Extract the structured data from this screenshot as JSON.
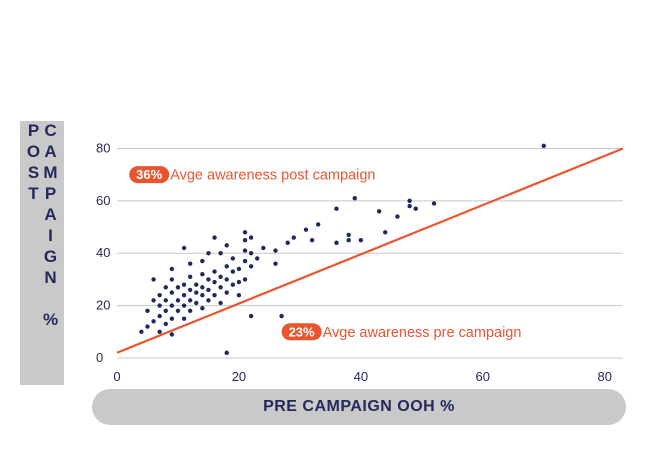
{
  "chart_data": {
    "type": "scatter",
    "xlabel": "PRE CAMPAIGN OOH %",
    "ylabel": "POST CAMPAIGN %",
    "xlim": [
      0,
      83
    ],
    "ylim": [
      0,
      84
    ],
    "xticks": [
      0,
      20,
      40,
      60,
      80
    ],
    "yticks": [
      0,
      20,
      40,
      60,
      80
    ],
    "grid": "horizontal",
    "colors": {
      "points": "#1f2a5c",
      "line": "#e8552f",
      "grid": "#c8c8c8",
      "text": "#232a5b",
      "label_box": "#c9c9c9"
    },
    "points": [
      [
        4,
        10
      ],
      [
        5,
        12
      ],
      [
        5,
        18
      ],
      [
        6,
        14
      ],
      [
        6,
        22
      ],
      [
        6,
        30
      ],
      [
        7,
        10
      ],
      [
        7,
        16
      ],
      [
        7,
        20
      ],
      [
        7,
        24
      ],
      [
        8,
        13
      ],
      [
        8,
        18
      ],
      [
        8,
        22
      ],
      [
        8,
        27
      ],
      [
        9,
        9
      ],
      [
        9,
        15
      ],
      [
        9,
        20
      ],
      [
        9,
        25
      ],
      [
        9,
        30
      ],
      [
        9,
        34
      ],
      [
        10,
        18
      ],
      [
        10,
        22
      ],
      [
        10,
        27
      ],
      [
        11,
        15
      ],
      [
        11,
        20
      ],
      [
        11,
        24
      ],
      [
        11,
        28
      ],
      [
        11,
        42
      ],
      [
        12,
        18
      ],
      [
        12,
        22
      ],
      [
        12,
        26
      ],
      [
        12,
        31
      ],
      [
        12,
        36
      ],
      [
        13,
        21
      ],
      [
        13,
        25
      ],
      [
        13,
        28
      ],
      [
        14,
        19
      ],
      [
        14,
        24
      ],
      [
        14,
        27
      ],
      [
        14,
        32
      ],
      [
        14,
        37
      ],
      [
        15,
        22
      ],
      [
        15,
        26
      ],
      [
        15,
        30
      ],
      [
        15,
        40
      ],
      [
        16,
        24
      ],
      [
        16,
        29
      ],
      [
        16,
        33
      ],
      [
        16,
        46
      ],
      [
        17,
        21
      ],
      [
        17,
        27
      ],
      [
        17,
        31
      ],
      [
        17,
        40
      ],
      [
        18,
        25
      ],
      [
        18,
        30
      ],
      [
        18,
        35
      ],
      [
        18,
        43
      ],
      [
        18,
        2
      ],
      [
        19,
        28
      ],
      [
        19,
        33
      ],
      [
        19,
        38
      ],
      [
        20,
        24
      ],
      [
        20,
        29
      ],
      [
        20,
        34
      ],
      [
        21,
        30
      ],
      [
        21,
        37
      ],
      [
        21,
        41
      ],
      [
        21,
        45
      ],
      [
        21,
        48
      ],
      [
        22,
        35
      ],
      [
        22,
        40
      ],
      [
        22,
        46
      ],
      [
        22,
        16
      ],
      [
        23,
        38
      ],
      [
        24,
        42
      ],
      [
        26,
        36
      ],
      [
        26,
        41
      ],
      [
        27,
        16
      ],
      [
        28,
        44
      ],
      [
        29,
        46
      ],
      [
        31,
        49
      ],
      [
        32,
        45
      ],
      [
        33,
        51
      ],
      [
        36,
        44
      ],
      [
        36,
        57
      ],
      [
        38,
        45
      ],
      [
        38,
        47
      ],
      [
        39,
        61
      ],
      [
        40,
        45
      ],
      [
        43,
        56
      ],
      [
        44,
        48
      ],
      [
        46,
        54
      ],
      [
        48,
        58
      ],
      [
        48,
        60
      ],
      [
        49,
        57
      ],
      [
        52,
        59
      ],
      [
        70,
        81
      ]
    ],
    "trendline": {
      "x": [
        0,
        83
      ],
      "y": [
        2,
        80
      ]
    },
    "annotations": [
      {
        "value": "36%",
        "text": "Avge awareness post campaign",
        "x": 2,
        "y": 70
      },
      {
        "value": "23%",
        "text": "Avge awareness pre campaign",
        "x": 27,
        "y": 10
      }
    ]
  }
}
